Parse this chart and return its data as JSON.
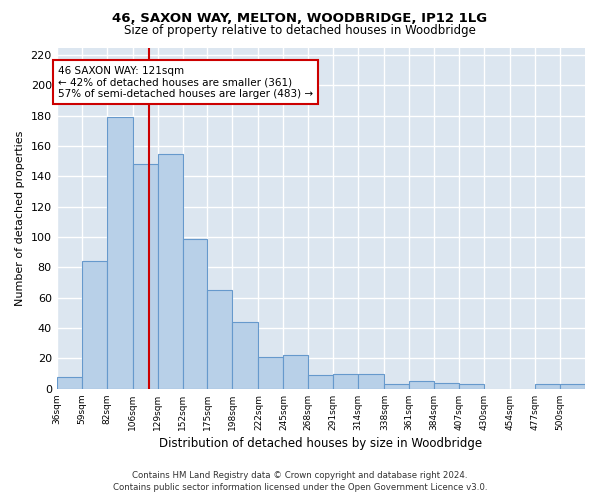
{
  "title1": "46, SAXON WAY, MELTON, WOODBRIDGE, IP12 1LG",
  "title2": "Size of property relative to detached houses in Woodbridge",
  "xlabel": "Distribution of detached houses by size in Woodbridge",
  "ylabel": "Number of detached properties",
  "bar_edges": [
    36,
    59,
    82,
    106,
    129,
    152,
    175,
    198,
    222,
    245,
    268,
    291,
    314,
    338,
    361,
    384,
    407,
    430,
    454,
    477,
    500
  ],
  "bar_heights": [
    8,
    84,
    179,
    148,
    155,
    99,
    65,
    44,
    21,
    22,
    9,
    10,
    10,
    3,
    5,
    4,
    3,
    0,
    0,
    3,
    3
  ],
  "bar_color": "#b8d0e8",
  "bar_edge_color": "#6699cc",
  "bar_linewidth": 0.8,
  "red_line_x": 121,
  "red_line_color": "#cc0000",
  "annotation_text": "46 SAXON WAY: 121sqm\n← 42% of detached houses are smaller (361)\n57% of semi-detached houses are larger (483) →",
  "annotation_box_color": "#ffffff",
  "annotation_box_edge": "#cc0000",
  "ylim": [
    0,
    225
  ],
  "yticks": [
    0,
    20,
    40,
    60,
    80,
    100,
    120,
    140,
    160,
    180,
    200,
    220
  ],
  "bg_color": "#dce6f0",
  "grid_color": "#ffffff",
  "footer": "Contains HM Land Registry data © Crown copyright and database right 2024.\nContains public sector information licensed under the Open Government Licence v3.0.",
  "tick_labels": [
    "36sqm",
    "59sqm",
    "82sqm",
    "106sqm",
    "129sqm",
    "152sqm",
    "175sqm",
    "198sqm",
    "222sqm",
    "245sqm",
    "268sqm",
    "291sqm",
    "314sqm",
    "338sqm",
    "361sqm",
    "384sqm",
    "407sqm",
    "430sqm",
    "454sqm",
    "477sqm",
    "500sqm"
  ]
}
